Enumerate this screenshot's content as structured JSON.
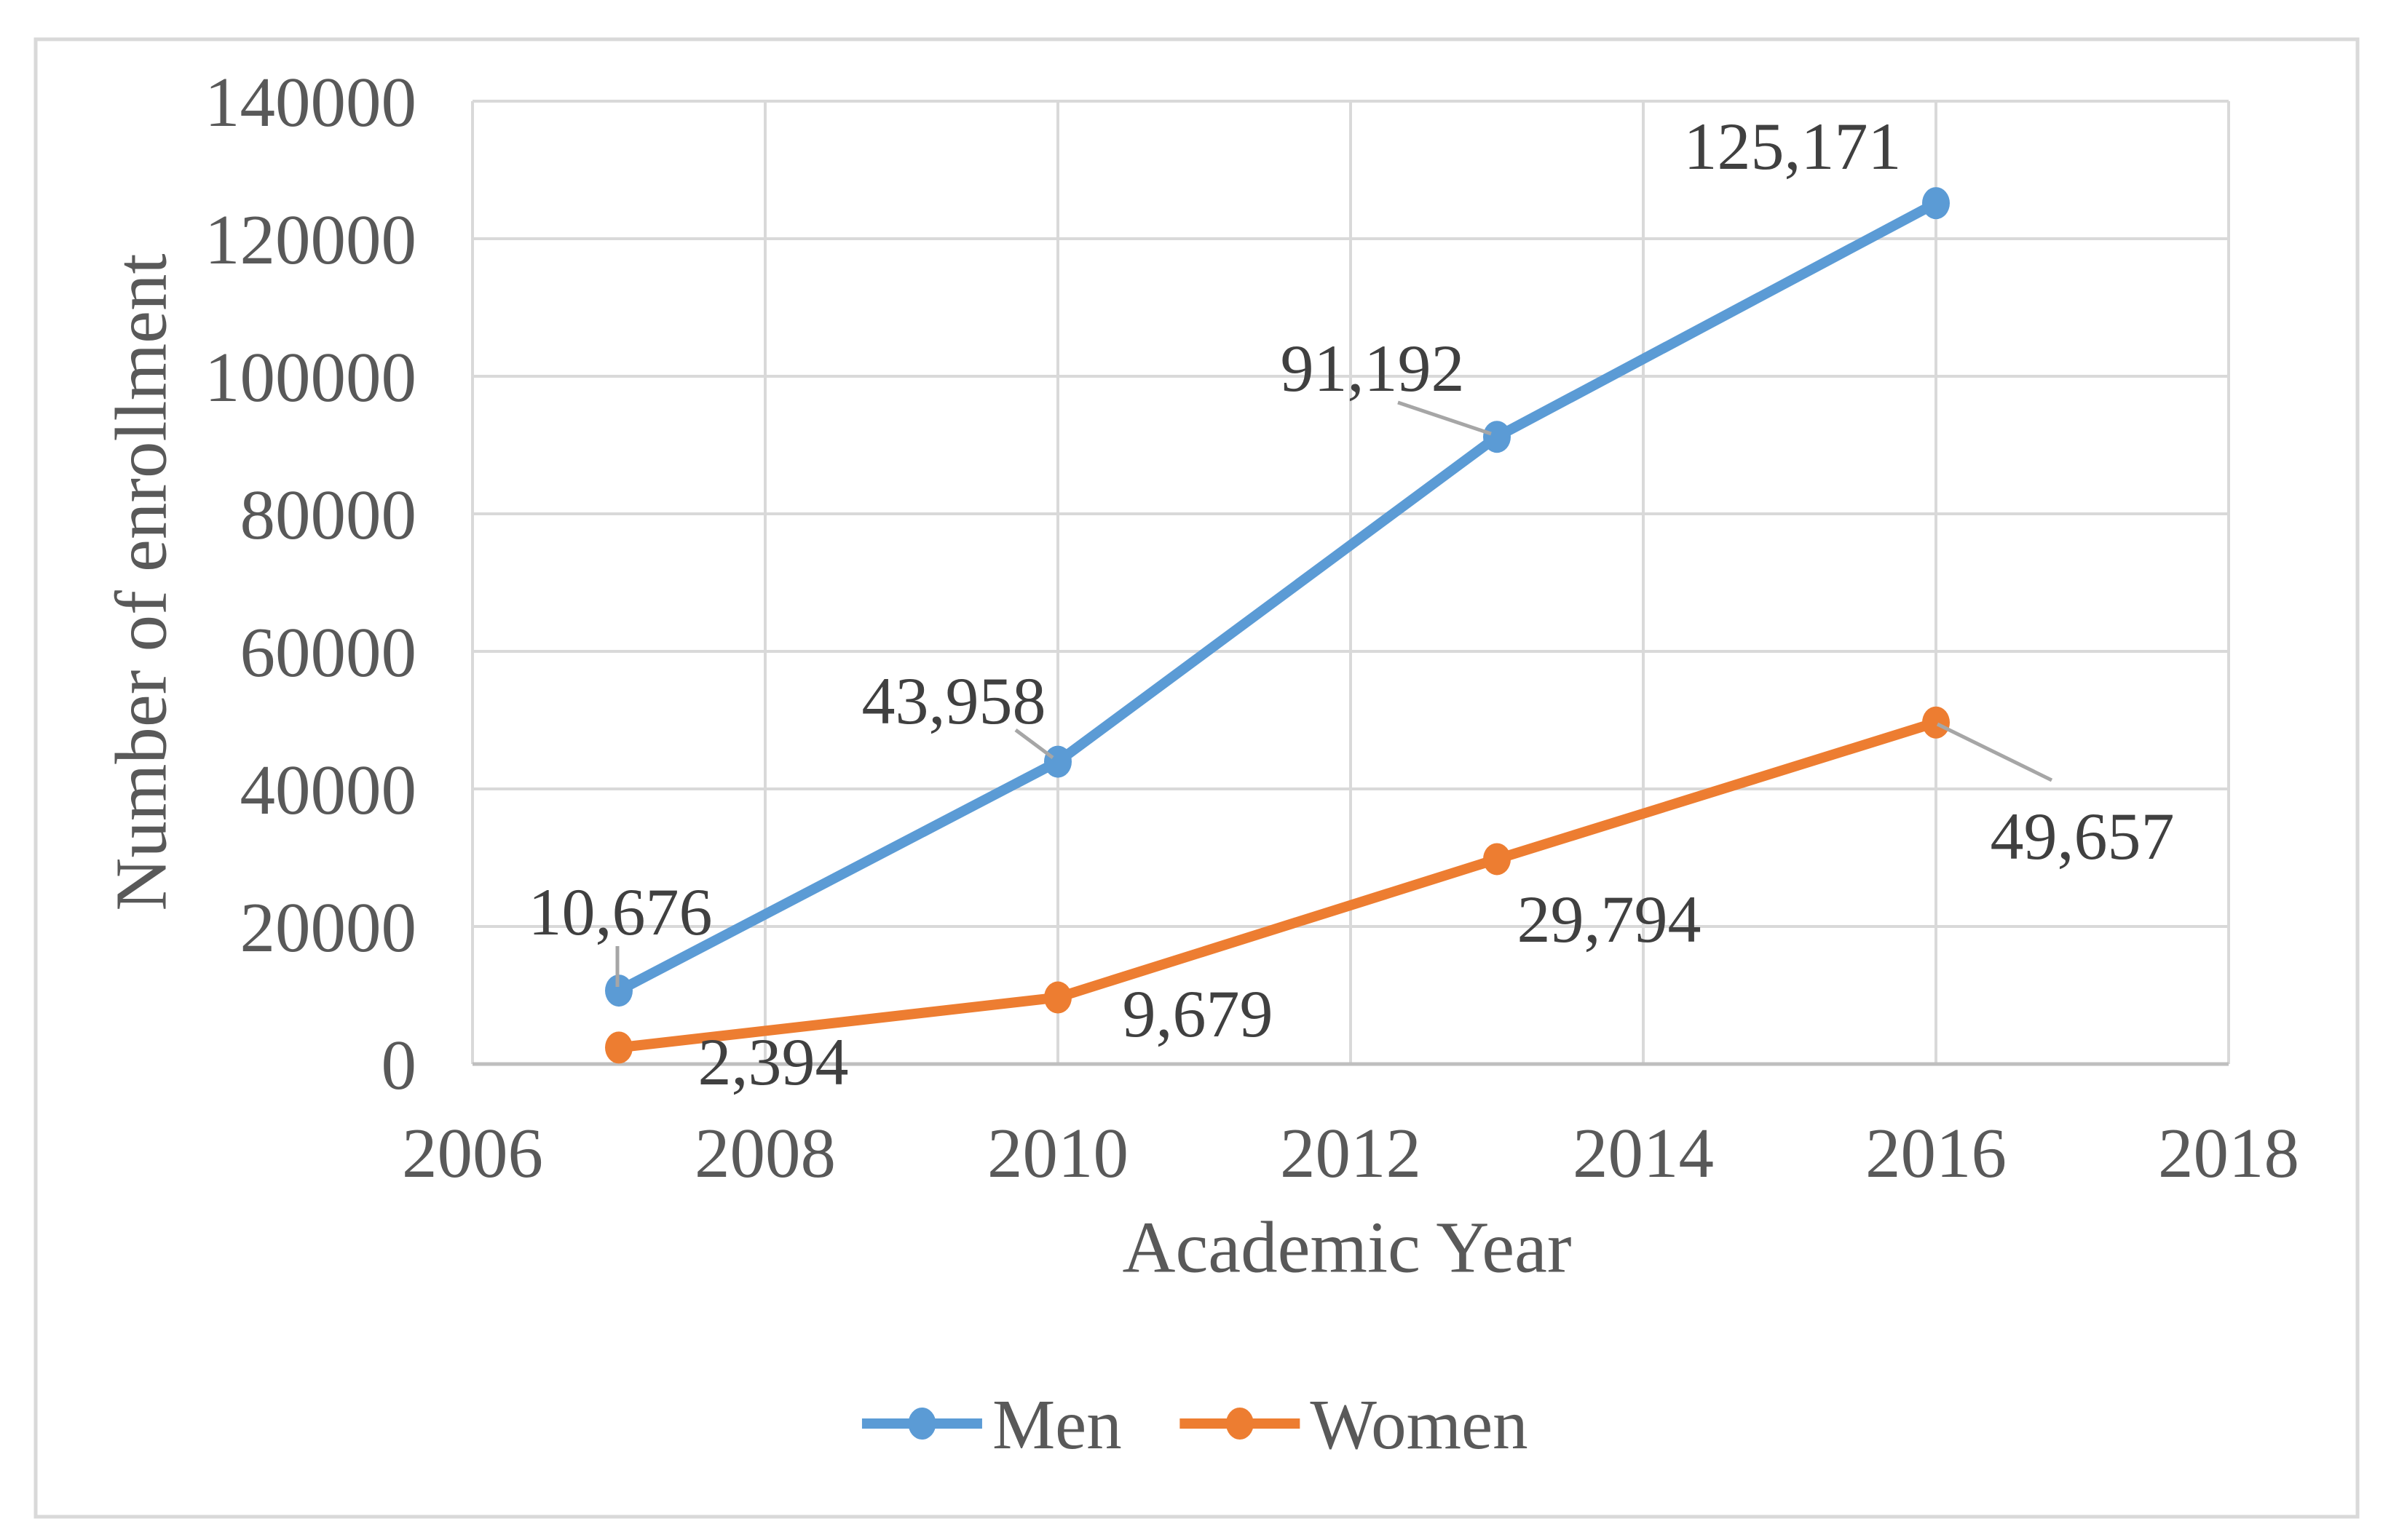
{
  "chart_data": {
    "type": "line",
    "title": "",
    "xlabel": "Academic Year",
    "ylabel": "Number of enrollment",
    "xlim": [
      2006,
      2018
    ],
    "ylim": [
      0,
      140000
    ],
    "x_ticks": [
      2006,
      2008,
      2010,
      2012,
      2014,
      2016,
      2018
    ],
    "x_tick_labels": [
      "2006",
      "2008",
      "2010",
      "2012",
      "2014",
      "2016",
      "2018"
    ],
    "y_ticks": [
      0,
      20000,
      40000,
      60000,
      80000,
      100000,
      120000,
      140000
    ],
    "y_tick_labels": [
      "0",
      "20000",
      "40000",
      "60000",
      "80000",
      "100000",
      "120000",
      "140000"
    ],
    "grid": true,
    "legend_position": "bottom-center",
    "series": [
      {
        "name": "Men",
        "color": "#5B9BD5",
        "x": [
          2007,
          2010,
          2013,
          2016
        ],
        "values": [
          10676,
          43958,
          91192,
          125171
        ],
        "labels": [
          "10,676",
          "43,958",
          "91,192",
          "125,171"
        ]
      },
      {
        "name": "Women",
        "color": "#ED7D31",
        "x": [
          2007,
          2010,
          2013,
          2016
        ],
        "values": [
          2394,
          9679,
          29794,
          49657
        ],
        "labels": [
          "2,394",
          "9,679",
          "29,794",
          "49,657"
        ]
      }
    ],
    "colors": {
      "gridline": "#D9D9D9",
      "axis_line": "#BFBFBF",
      "tick_text": "#595959",
      "title_text": "#595959",
      "data_label_text": "#404040",
      "leader_line": "#A6A6A6",
      "card_border": "#D9D9D9",
      "background": "#FFFFFF"
    }
  }
}
